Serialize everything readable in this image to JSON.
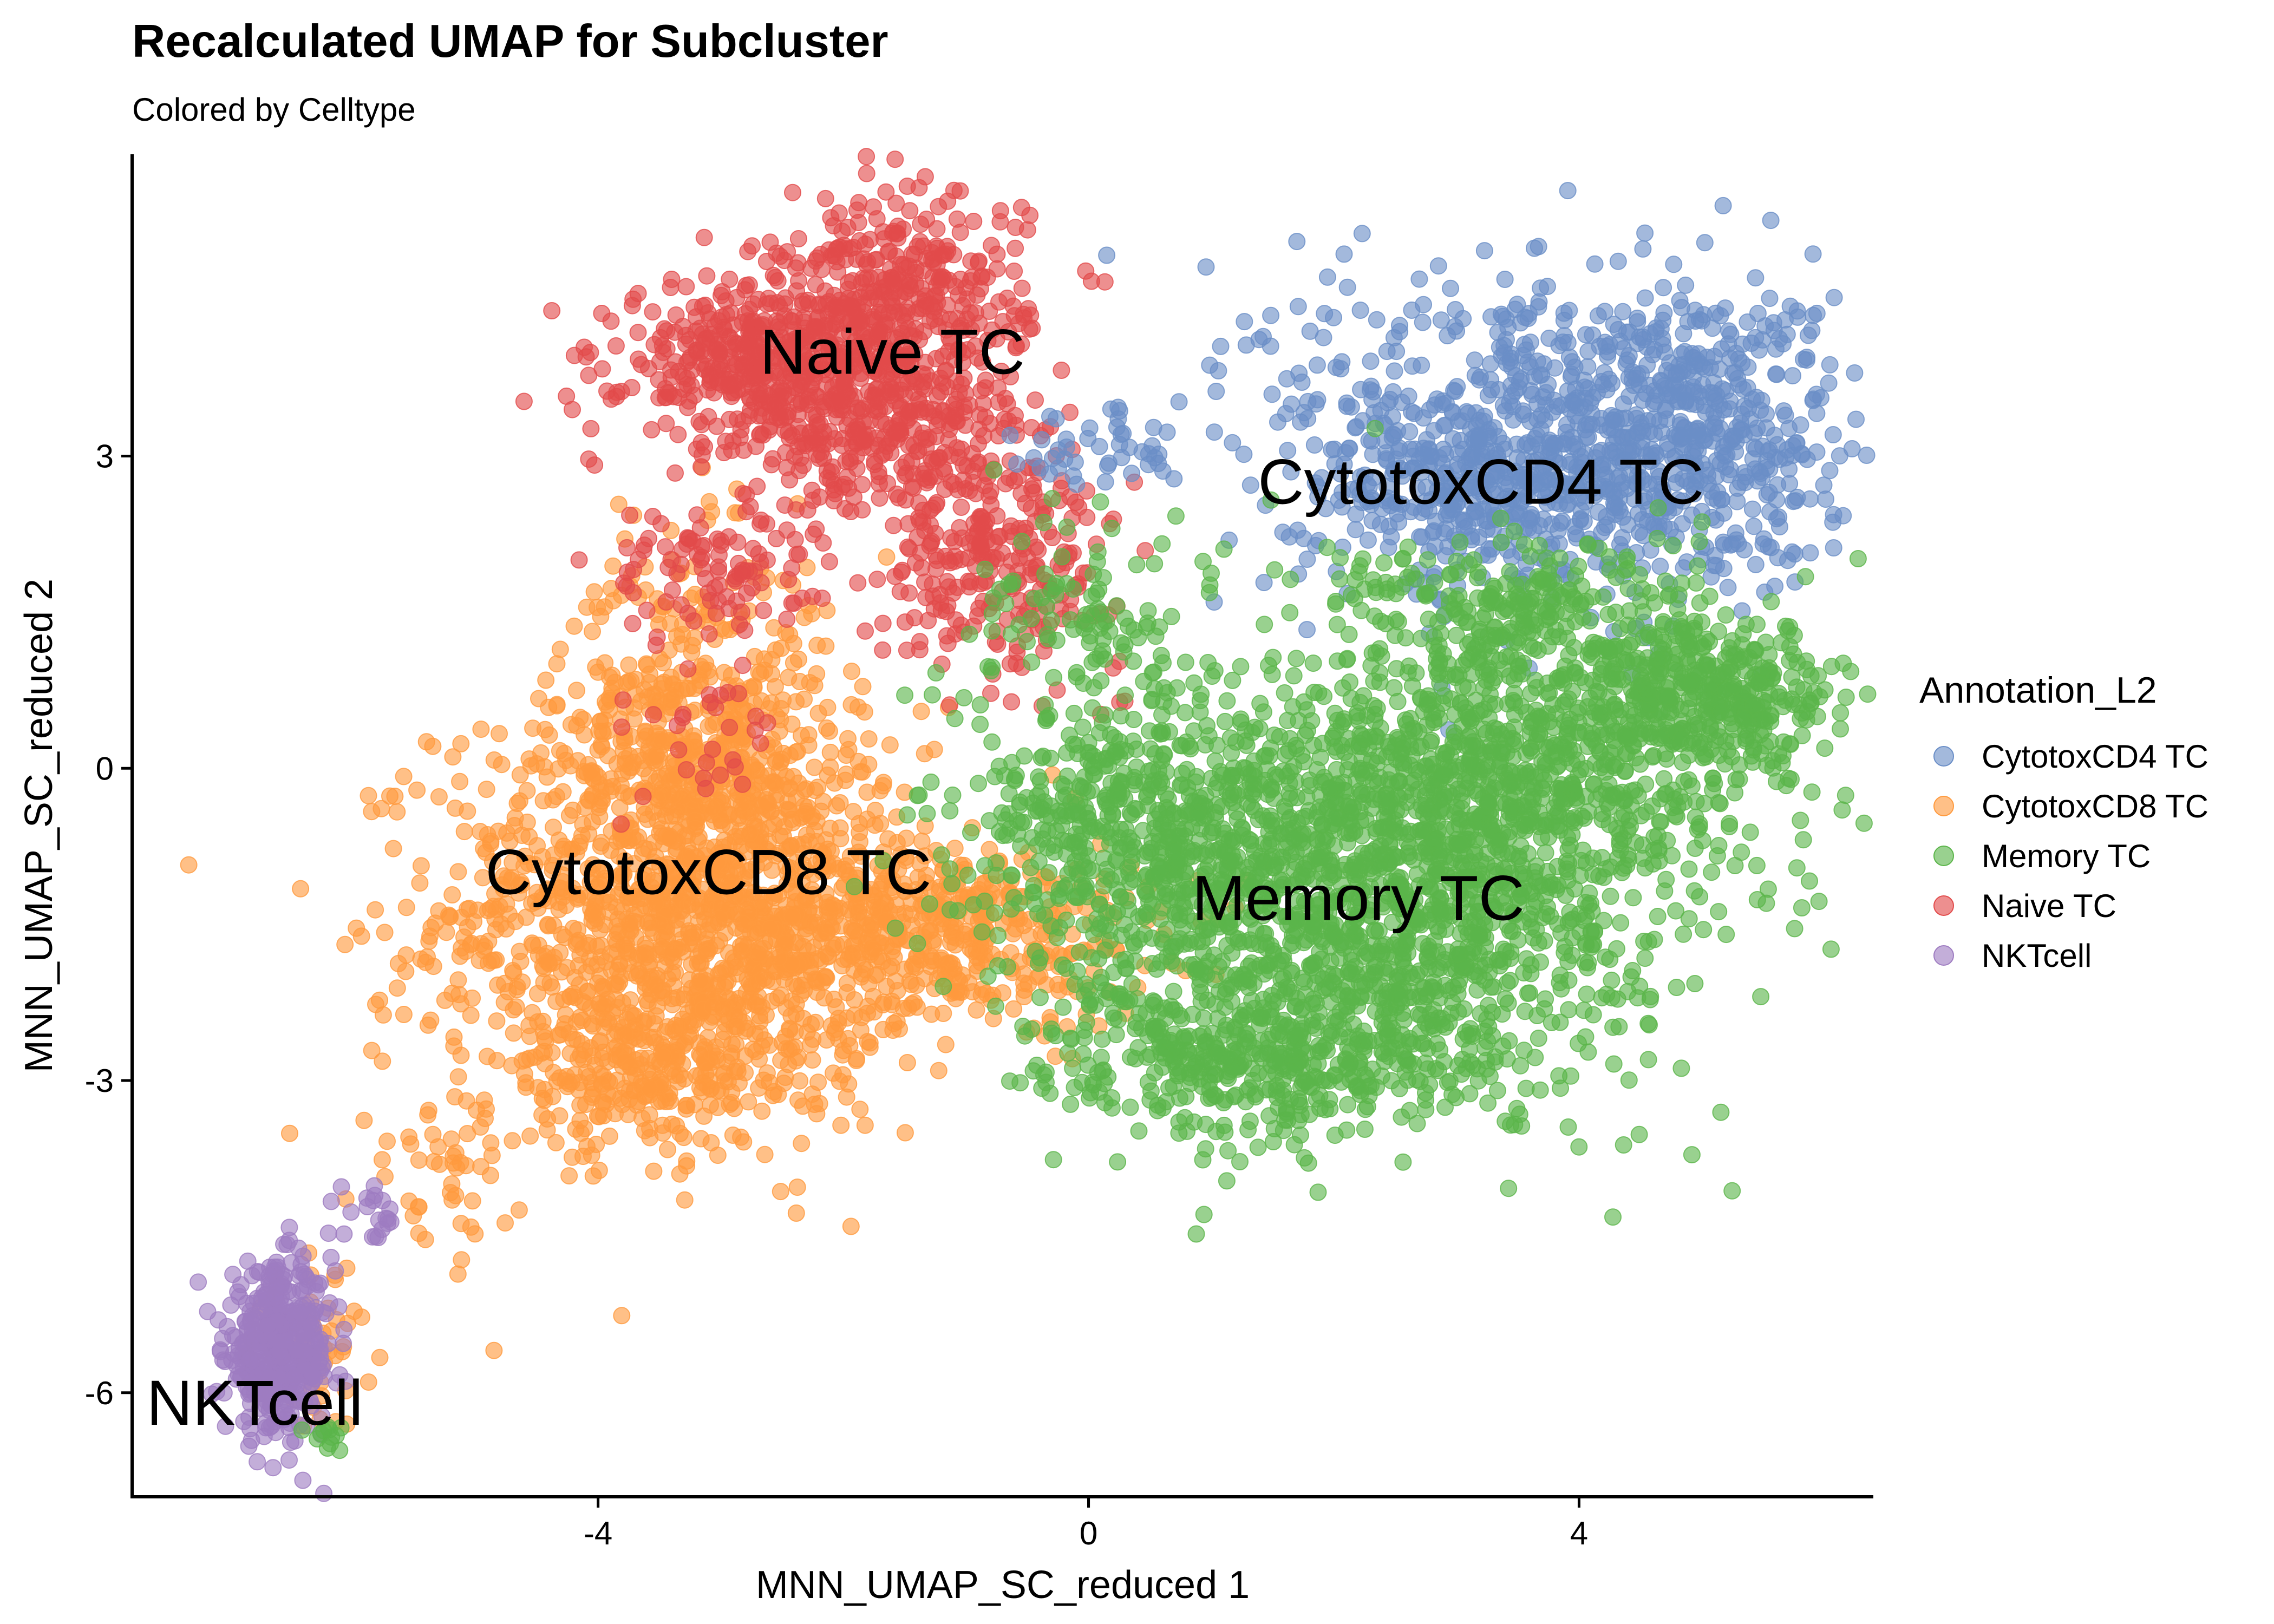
{
  "chart_data": {
    "type": "scatter",
    "title": "Recalculated UMAP for Subcluster",
    "subtitle": "Colored by Celltype",
    "xlabel": "MNN_UMAP_SC_reduced 1",
    "ylabel": "MNN_UMAP_SC_reduced 2",
    "xlim": [
      -7.8,
      6.4
    ],
    "ylim": [
      -7.0,
      5.9
    ],
    "x_ticks": [
      -4,
      0,
      4
    ],
    "y_ticks": [
      -6,
      -3,
      3
    ],
    "y_tick_labels_extra": [
      "0"
    ],
    "grid": false,
    "legend": {
      "title": "Annotation_L2",
      "placement": "right"
    },
    "series": [
      {
        "name": "CytotoxCD4 TC",
        "color": "#6A8EC7",
        "label": "CytotoxCD4 TC",
        "label_pos": [
          3.2,
          2.75
        ],
        "blobs": [
          {
            "cx": 3.7,
            "cy": 3.2,
            "sx": 1.1,
            "sy": 0.8,
            "n": 750
          },
          {
            "cx": 5.0,
            "cy": 3.3,
            "sx": 0.5,
            "sy": 0.7,
            "n": 300
          },
          {
            "cx": 3.2,
            "cy": 2.6,
            "sx": 0.6,
            "sy": 0.4,
            "n": 200
          },
          {
            "cx": 0.1,
            "cy": 3.1,
            "sx": 0.35,
            "sy": 0.25,
            "n": 40
          }
        ]
      },
      {
        "name": "CytotoxCD8 TC",
        "color": "#FF9A3E",
        "label": "CytotoxCD8 TC",
        "label_pos": [
          -3.1,
          -1.0
        ],
        "blobs": [
          {
            "cx": -3.3,
            "cy": -1.4,
            "sx": 1.0,
            "sy": 1.0,
            "n": 1300
          },
          {
            "cx": -3.2,
            "cy": 0.3,
            "sx": 0.55,
            "sy": 0.9,
            "n": 500
          },
          {
            "cx": -1.3,
            "cy": -1.6,
            "sx": 0.9,
            "sy": 0.45,
            "n": 500
          },
          {
            "cx": -3.6,
            "cy": -2.9,
            "sx": 0.7,
            "sy": 0.4,
            "n": 250
          },
          {
            "cx": -5.3,
            "cy": -4.0,
            "sx": 0.3,
            "sy": 0.35,
            "n": 40
          },
          {
            "cx": -6.2,
            "cy": -5.5,
            "sx": 0.2,
            "sy": 0.4,
            "n": 40
          }
        ]
      },
      {
        "name": "Memory TC",
        "color": "#5BB54A",
        "label": "Memory TC",
        "label_pos": [
          2.2,
          -1.25
        ],
        "blobs": [
          {
            "cx": 2.0,
            "cy": -1.2,
            "sx": 1.2,
            "sy": 1.0,
            "n": 1500
          },
          {
            "cx": 3.5,
            "cy": -0.2,
            "sx": 1.0,
            "sy": 0.9,
            "n": 900
          },
          {
            "cx": 5.0,
            "cy": 0.7,
            "sx": 0.6,
            "sy": 0.35,
            "n": 400
          },
          {
            "cx": 1.5,
            "cy": -2.8,
            "sx": 0.9,
            "sy": 0.35,
            "n": 400
          },
          {
            "cx": 0.2,
            "cy": -0.5,
            "sx": 0.6,
            "sy": 0.6,
            "n": 300
          },
          {
            "cx": 3.5,
            "cy": 1.6,
            "sx": 0.8,
            "sy": 0.35,
            "n": 200
          },
          {
            "cx": 0.0,
            "cy": 1.4,
            "sx": 0.5,
            "sy": 0.5,
            "n": 100
          },
          {
            "cx": -6.2,
            "cy": -6.4,
            "sx": 0.1,
            "sy": 0.08,
            "n": 12
          }
        ]
      },
      {
        "name": "Naive TC",
        "color": "#E24B4B",
        "label": "Naive TC",
        "label_pos": [
          -1.6,
          4.0
        ],
        "blobs": [
          {
            "cx": -2.6,
            "cy": 3.9,
            "sx": 0.6,
            "sy": 0.4,
            "n": 500
          },
          {
            "cx": -1.5,
            "cy": 4.5,
            "sx": 0.5,
            "sy": 0.5,
            "n": 350
          },
          {
            "cx": -1.6,
            "cy": 3.2,
            "sx": 0.6,
            "sy": 0.45,
            "n": 300
          },
          {
            "cx": -0.7,
            "cy": 2.0,
            "sx": 0.5,
            "sy": 0.5,
            "n": 250
          },
          {
            "cx": -3.1,
            "cy": 1.9,
            "sx": 0.4,
            "sy": 0.35,
            "n": 100
          },
          {
            "cx": -3.1,
            "cy": 0.2,
            "sx": 0.35,
            "sy": 0.4,
            "n": 30
          }
        ]
      },
      {
        "name": "NKTcell",
        "color": "#9E7CC1",
        "label": "NKTcell",
        "label_pos": [
          -6.8,
          -6.1
        ],
        "blobs": [
          {
            "cx": -6.6,
            "cy": -5.6,
            "sx": 0.22,
            "sy": 0.4,
            "n": 450
          },
          {
            "cx": -5.8,
            "cy": -4.3,
            "sx": 0.15,
            "sy": 0.12,
            "n": 20
          }
        ]
      }
    ]
  }
}
